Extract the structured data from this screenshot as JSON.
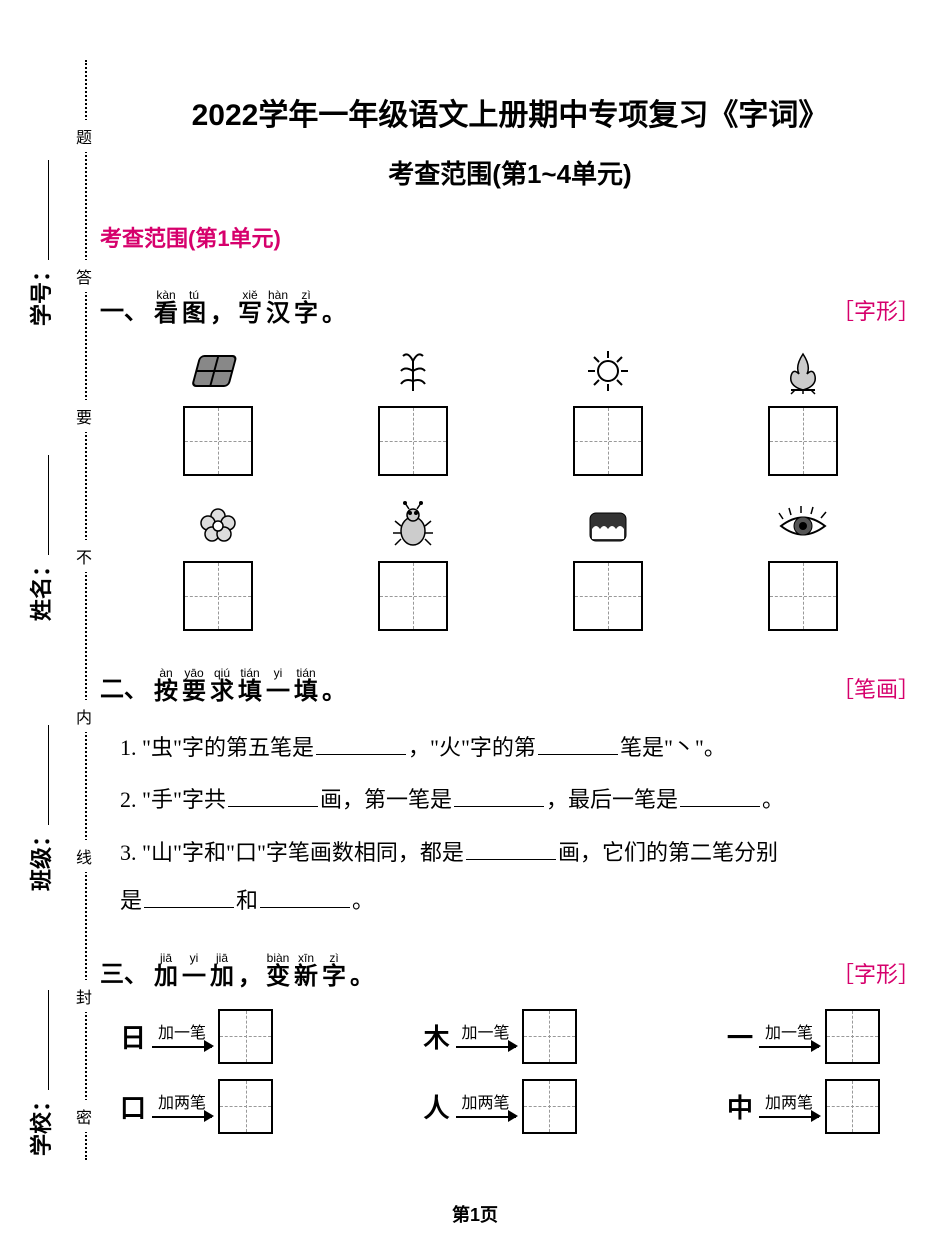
{
  "title_line1": "2022学年一年级语文上册期中专项复习《字词》",
  "title_line2": "考查范围(第1~4单元)",
  "scope_heading": "考查范围(第1单元)",
  "side": {
    "xuehao": "学号：",
    "xingming": "姓名：",
    "banji": "班级：",
    "xuexiao": "学校："
  },
  "binding": {
    "c1": "题",
    "c2": "答",
    "c3": "要",
    "c4": "不",
    "c5": "内",
    "c6": "线",
    "c7": "封",
    "c8": "密"
  },
  "q1": {
    "number": "一、",
    "ruby": [
      {
        "pinyin": "kàn",
        "hanzi": "看"
      },
      {
        "pinyin": "tú",
        "hanzi": "图"
      },
      {
        "pinyin": "",
        "hanzi": "，"
      },
      {
        "pinyin": "xiě",
        "hanzi": "写"
      },
      {
        "pinyin": "hàn",
        "hanzi": "汉"
      },
      {
        "pinyin": "zì",
        "hanzi": "字"
      },
      {
        "pinyin": "",
        "hanzi": "。"
      }
    ],
    "tag": "［字形］"
  },
  "q2": {
    "number": "二、",
    "ruby": [
      {
        "pinyin": "àn",
        "hanzi": "按"
      },
      {
        "pinyin": "yāo",
        "hanzi": "要"
      },
      {
        "pinyin": "qiú",
        "hanzi": "求"
      },
      {
        "pinyin": "tián",
        "hanzi": "填"
      },
      {
        "pinyin": "yi",
        "hanzi": "一"
      },
      {
        "pinyin": "tián",
        "hanzi": "填"
      },
      {
        "pinyin": "",
        "hanzi": "。"
      }
    ],
    "tag": "［笔画］",
    "line1a": "1. \"虫\"字的第五笔是",
    "line1b": "，\"火\"字的第",
    "line1c": "笔是\"丶\"。",
    "line2a": "2. \"手\"字共",
    "line2b": "画，第一笔是",
    "line2c": "，最后一笔是",
    "line2d": "。",
    "line3a": "3. \"山\"字和\"口\"字笔画数相同，都是",
    "line3b": "画，它们的第二笔分别",
    "line3c": "是",
    "line3d": "和",
    "line3e": "。"
  },
  "q3": {
    "number": "三、",
    "ruby": [
      {
        "pinyin": "jiā",
        "hanzi": "加"
      },
      {
        "pinyin": "yi",
        "hanzi": "一"
      },
      {
        "pinyin": "jiā",
        "hanzi": "加"
      },
      {
        "pinyin": "",
        "hanzi": "，"
      },
      {
        "pinyin": "biàn",
        "hanzi": "变"
      },
      {
        "pinyin": "xīn",
        "hanzi": "新"
      },
      {
        "pinyin": "zì",
        "hanzi": "字"
      },
      {
        "pinyin": "",
        "hanzi": "。"
      }
    ],
    "tag": "［字形］",
    "add_one": "加一笔",
    "add_two": "加两笔",
    "row1": [
      "日",
      "木",
      "一"
    ],
    "row2": [
      "口",
      "人",
      "中"
    ]
  },
  "footer": "第1页"
}
